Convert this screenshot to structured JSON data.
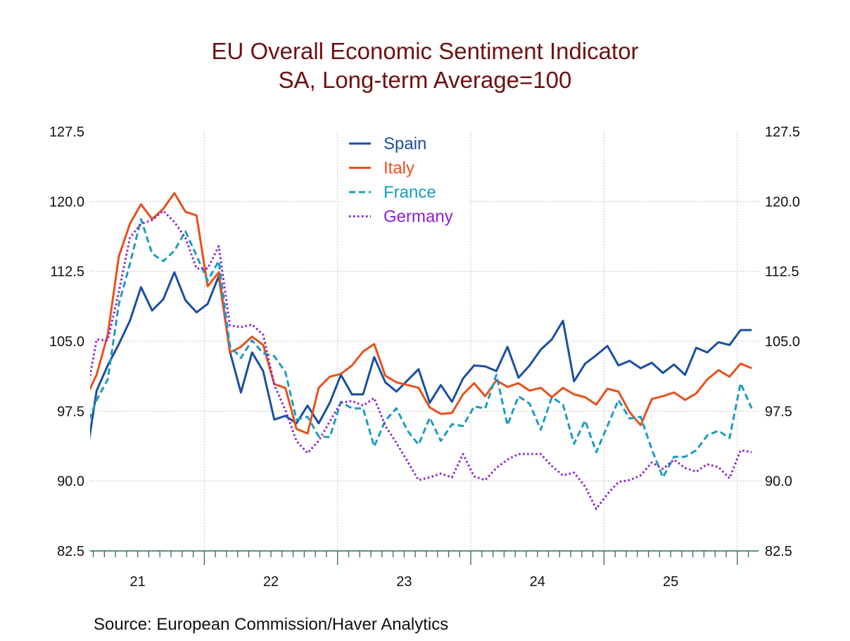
{
  "chart_data": {
    "type": "line",
    "title": "EU Overall Economic Sentiment Indicator",
    "subtitle": "SA, Long-term Average=100",
    "xlabel": "",
    "ylabel": "",
    "ylim": [
      82.5,
      127.5
    ],
    "yticks": [
      "127.5",
      "120.0",
      "112.5",
      "105.0",
      "97.5",
      "90.0",
      "82.5"
    ],
    "xticks": [
      "21",
      "22",
      "23",
      "24",
      "25"
    ],
    "grid": true,
    "legend_position": "top-center",
    "source": "Source:  European Commission/Haver Analytics",
    "x": [
      "2021-02",
      "2021-03",
      "2021-04",
      "2021-05",
      "2021-06",
      "2021-07",
      "2021-08",
      "2021-09",
      "2021-10",
      "2021-11",
      "2021-12",
      "2022-01",
      "2022-02",
      "2022-03",
      "2022-04",
      "2022-05",
      "2022-06",
      "2022-07",
      "2022-08",
      "2022-09",
      "2022-10",
      "2022-11",
      "2022-12",
      "2023-01",
      "2023-02",
      "2023-03",
      "2023-04",
      "2023-05",
      "2023-06",
      "2023-07",
      "2023-08",
      "2023-09",
      "2023-10",
      "2023-11",
      "2023-12",
      "2024-01",
      "2024-02",
      "2024-03",
      "2024-04",
      "2024-05",
      "2024-06",
      "2024-07",
      "2024-08",
      "2024-09",
      "2024-10",
      "2024-11",
      "2024-12",
      "2025-01",
      "2025-02",
      "2025-03",
      "2025-04",
      "2025-05",
      "2025-06",
      "2025-07",
      "2025-08",
      "2025-09",
      "2025-10",
      "2025-11",
      "2025-12",
      "2026-01",
      "2026-02"
    ],
    "series": [
      {
        "name": "Spain",
        "color": "#1a4fa0",
        "dash": "solid",
        "values": [
          91.9,
          99.7,
          102.4,
          104.7,
          107.2,
          110.8,
          108.3,
          109.5,
          112.4,
          109.4,
          108.1,
          109.0,
          112.0,
          103.9,
          99.5,
          103.8,
          101.8,
          96.6,
          97.0,
          96.2,
          98.1,
          96.2,
          98.4,
          101.4,
          99.3,
          99.3,
          103.3,
          100.6,
          99.6,
          100.8,
          102.0,
          98.4,
          100.3,
          98.5,
          101.0,
          102.4,
          102.3,
          101.8,
          104.4,
          101.1,
          102.4,
          104.1,
          105.2,
          107.2,
          100.7,
          102.6,
          103.5,
          104.5,
          102.4,
          102.9,
          102.1,
          102.7,
          101.6,
          102.5,
          101.4,
          104.3,
          103.8,
          104.9,
          104.6,
          106.2,
          106.2
        ]
      },
      {
        "name": "Italy",
        "color": "#e8501a",
        "dash": "solid",
        "values": [
          98.9,
          101.4,
          105.7,
          114.1,
          117.6,
          119.7,
          118.1,
          119.2,
          120.9,
          118.9,
          118.5,
          110.9,
          112.4,
          103.8,
          104.4,
          105.5,
          104.6,
          100.4,
          100.0,
          95.6,
          95.1,
          100.0,
          101.2,
          101.5,
          102.4,
          103.9,
          104.7,
          101.3,
          100.6,
          100.3,
          100.0,
          97.9,
          97.2,
          97.3,
          99.3,
          100.5,
          99.1,
          100.8,
          100.1,
          100.5,
          99.7,
          100.0,
          99.0,
          100.0,
          99.3,
          99.0,
          98.2,
          99.9,
          99.6,
          97.4,
          96.0,
          98.8,
          99.1,
          99.5,
          98.7,
          99.4,
          100.9,
          101.9,
          101.2,
          102.6,
          102.1
        ]
      },
      {
        "name": "France",
        "color": "#1a9cbf",
        "dash": "dashed",
        "values": [
          95.6,
          98.7,
          100.9,
          109.0,
          113.3,
          118.1,
          114.4,
          113.6,
          114.7,
          116.8,
          114.2,
          111.5,
          113.6,
          104.5,
          103.2,
          105.1,
          103.7,
          103.4,
          101.7,
          96.6,
          96.9,
          94.8,
          94.7,
          98.5,
          97.8,
          97.8,
          93.7,
          96.5,
          97.8,
          95.4,
          93.9,
          96.8,
          94.3,
          96.1,
          95.9,
          98.0,
          97.8,
          101.4,
          96.0,
          99.1,
          98.3,
          95.5,
          99.0,
          98.2,
          94.0,
          96.5,
          93.1,
          95.9,
          98.7,
          96.7,
          96.9,
          93.4,
          90.4,
          92.6,
          92.6,
          93.3,
          94.9,
          95.4,
          94.6,
          100.5,
          97.8
        ]
      },
      {
        "name": "Germany",
        "color": "#8a1fd6",
        "dash": "dotted",
        "values": [
          98.6,
          105.2,
          105.1,
          110.3,
          116.1,
          117.6,
          118.0,
          119.0,
          117.8,
          116.1,
          112.8,
          112.8,
          115.2,
          106.7,
          106.5,
          106.8,
          105.7,
          100.3,
          97.6,
          94.3,
          93.0,
          94.3,
          96.4,
          98.4,
          98.6,
          98.1,
          98.9,
          95.9,
          94.1,
          92.1,
          90.1,
          90.4,
          90.8,
          90.4,
          92.9,
          90.5,
          90.1,
          91.4,
          92.3,
          92.9,
          92.9,
          92.9,
          91.6,
          90.6,
          90.9,
          89.4,
          87.0,
          88.6,
          89.9,
          90.1,
          90.6,
          92.0,
          91.3,
          92.3,
          91.4,
          91.0,
          91.8,
          91.5,
          90.3,
          93.3,
          93.1
        ]
      }
    ]
  },
  "colors": {
    "title": "#6e1010",
    "axis": "#2f6b5c",
    "grid": "#c8c8c8"
  }
}
